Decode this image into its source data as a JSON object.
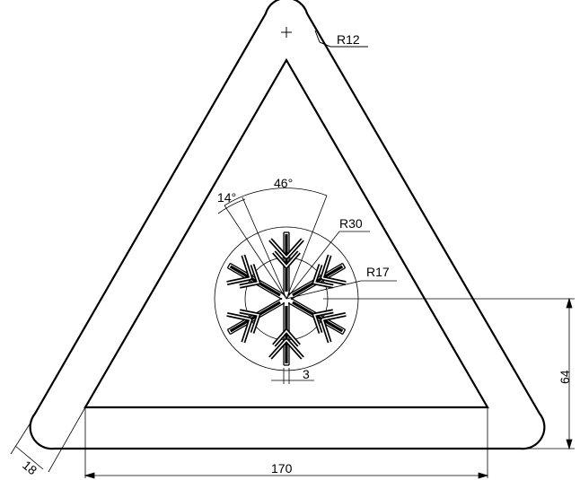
{
  "drawing": {
    "dimensions": {
      "r12": "R12",
      "r30": "R30",
      "r17": "R17",
      "angle_46": "46°",
      "angle_14": "14°",
      "width_170": "170",
      "height_64": "64",
      "border_18": "18",
      "gap_3": "3"
    },
    "colors": {
      "line": "#000000",
      "background": "#ffffff"
    },
    "icons": {
      "center_mark": "plus-mark-icon",
      "snowflake": "snowflake-icon"
    }
  }
}
